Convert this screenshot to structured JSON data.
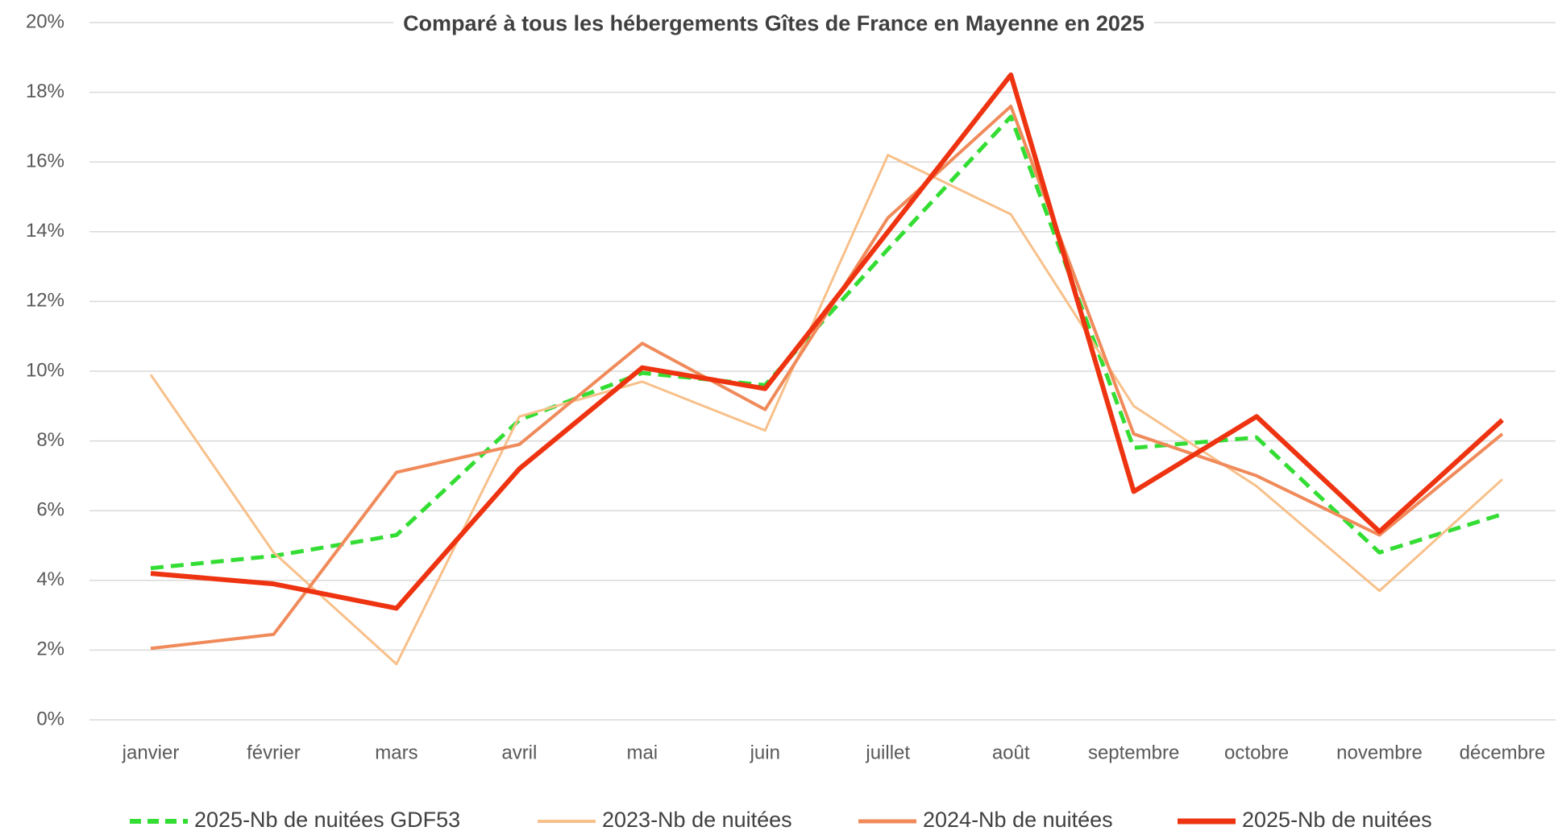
{
  "chart_data": {
    "type": "line",
    "title": "Comparé à tous les hébergements Gîtes de France en Mayenne en 2025",
    "categories": [
      "janvier",
      "février",
      "mars",
      "avril",
      "mai",
      "juin",
      "juillet",
      "août",
      "septembre",
      "octobre",
      "novembre",
      "décembre"
    ],
    "series": [
      {
        "name": "2025-Nb de nuitées GDF53",
        "color": "#33dd33",
        "dashed": true,
        "values": [
          4.35,
          4.7,
          5.3,
          8.6,
          9.95,
          9.6,
          13.5,
          17.3,
          7.8,
          8.1,
          4.8,
          5.9
        ]
      },
      {
        "name": "2023-Nb de nuitées",
        "color": "#f8c08a",
        "values": [
          9.9,
          4.8,
          1.6,
          8.7,
          9.7,
          8.3,
          16.2,
          14.5,
          9.0,
          6.7,
          3.7,
          6.9
        ]
      },
      {
        "name": "2024-Nb de nuitées",
        "color": "#f08a5a",
        "values": [
          2.05,
          2.45,
          7.1,
          7.9,
          10.8,
          8.9,
          14.4,
          17.6,
          8.2,
          7.0,
          5.3,
          8.2
        ]
      },
      {
        "name": "2025-Nb de nuitées",
        "color": "#ee3311",
        "values": [
          4.2,
          3.9,
          3.2,
          7.2,
          10.1,
          9.5,
          14.0,
          18.5,
          6.55,
          8.7,
          5.4,
          8.6
        ]
      }
    ],
    "ylim": [
      0,
      20
    ],
    "yticks": [
      {
        "value": 0,
        "label": "0%"
      },
      {
        "value": 2,
        "label": "2%"
      },
      {
        "value": 4,
        "label": "4%"
      },
      {
        "value": 6,
        "label": "6%"
      },
      {
        "value": 8,
        "label": "8%"
      },
      {
        "value": 10,
        "label": "10%"
      },
      {
        "value": 12,
        "label": "12%"
      },
      {
        "value": 14,
        "label": "14%"
      },
      {
        "value": 16,
        "label": "16%"
      },
      {
        "value": 18,
        "label": "18%"
      },
      {
        "value": 20,
        "label": "20%"
      }
    ],
    "grid": true,
    "legend": "bottom"
  }
}
